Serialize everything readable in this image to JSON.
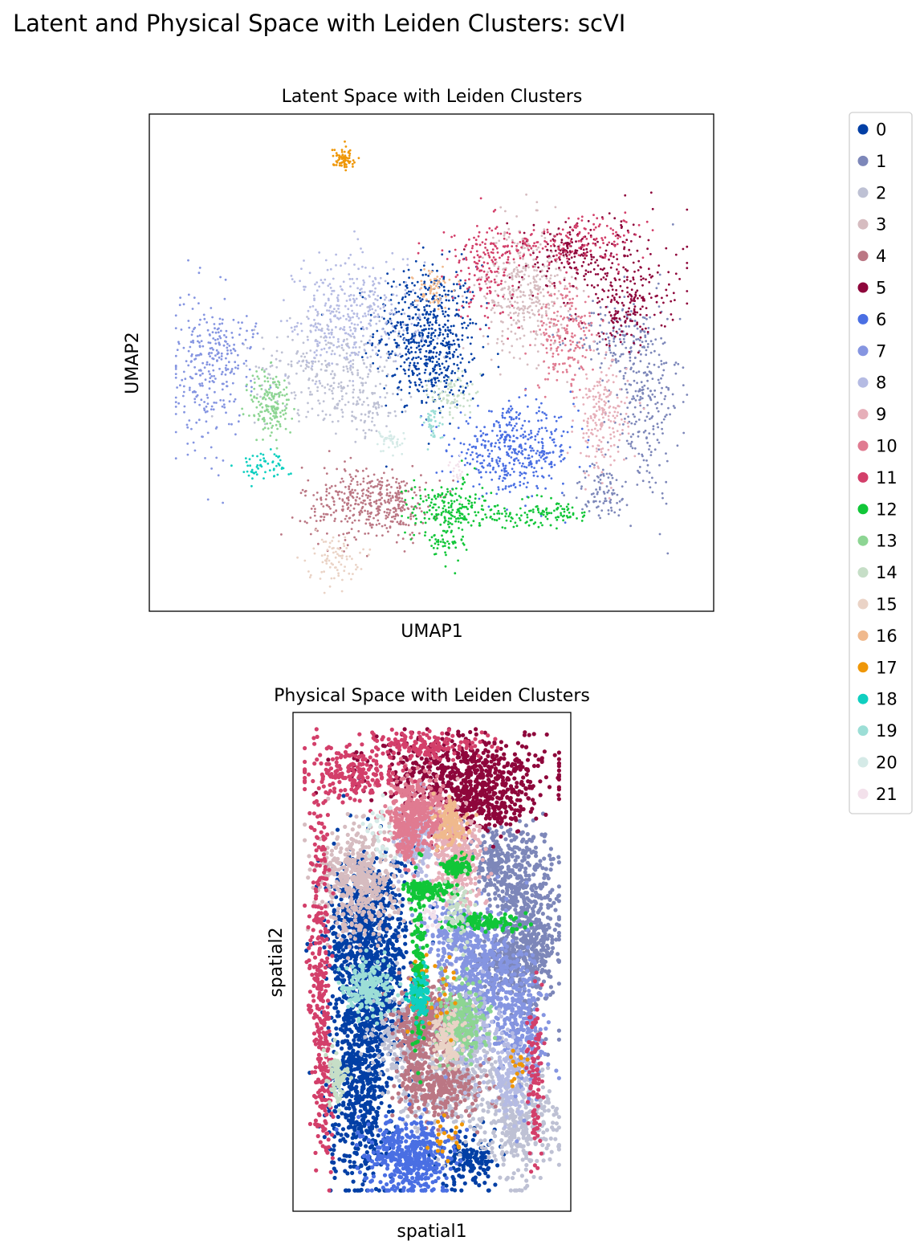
{
  "figure_title": "Latent and Physical Space with Leiden Clusters: scVI",
  "chart_data": [
    {
      "type": "scatter",
      "title": "Latent Space with Leiden Clusters",
      "xlabel": "UMAP1",
      "ylabel": "UMAP2",
      "grid": false,
      "ticks": false,
      "xlim": [
        0,
        100
      ],
      "ylim": [
        0,
        100
      ],
      "clusters": [
        {
          "id": "0",
          "blobs": [
            [
              49,
              57,
              5,
              7,
              520
            ],
            [
              51,
              48,
              3,
              4,
              120
            ]
          ]
        },
        {
          "id": "1",
          "blobs": [
            [
              91,
              42,
              3.5,
              11,
              260
            ],
            [
              86,
              55,
              4,
              4,
              120
            ],
            [
              83,
              22,
              3,
              3,
              80
            ]
          ]
        },
        {
          "id": "2",
          "blobs": [
            [
              30,
              49,
              7,
              5,
              260
            ],
            [
              37,
              40,
              4,
              3,
              90
            ]
          ]
        },
        {
          "id": "3",
          "blobs": [
            [
              68,
              66,
              4,
              7,
              380
            ]
          ]
        },
        {
          "id": "4",
          "blobs": [
            [
              37,
              20,
              6,
              4,
              340
            ],
            [
              43,
              19,
              3,
              3,
              90
            ]
          ]
        },
        {
          "id": "5",
          "blobs": [
            [
              82,
              72,
              8,
              5,
              200
            ],
            [
              88,
              62,
              4,
              4,
              160
            ],
            [
              76,
              74,
              3,
              2,
              60
            ]
          ]
        },
        {
          "id": "6",
          "blobs": [
            [
              66,
              31,
              6,
              4.5,
              430
            ]
          ]
        },
        {
          "id": "7",
          "blobs": [
            [
              6,
              48,
              3.5,
              8,
              230
            ],
            [
              11,
              53,
              3,
              4,
              70
            ]
          ]
        },
        {
          "id": "8",
          "blobs": [
            [
              36,
              62,
              6,
              6,
              300
            ],
            [
              31,
              55,
              4,
              3,
              80
            ]
          ]
        },
        {
          "id": "9",
          "blobs": [
            [
              83,
              38,
              2.5,
              6,
              200
            ]
          ]
        },
        {
          "id": "10",
          "blobs": [
            [
              76,
              56,
              3,
              6,
              200
            ]
          ]
        },
        {
          "id": "11",
          "blobs": [
            [
              60,
              70,
              3,
              5,
              140
            ],
            [
              71,
              75,
              8,
              2,
              140
            ],
            [
              83,
              78,
              4,
              2,
              60
            ]
          ]
        },
        {
          "id": "12",
          "blobs": [
            [
              53,
              19,
              4,
              3,
              170
            ],
            [
              63,
              17,
              6,
              1.5,
              80
            ],
            [
              75,
              18,
              2.5,
              1.5,
              60
            ],
            [
              53,
              12,
              2,
              3,
              60
            ]
          ]
        },
        {
          "id": "13",
          "blobs": [
            [
              19,
              41,
              2,
              4,
              170
            ]
          ]
        },
        {
          "id": "14",
          "blobs": [
            [
              54,
              43,
              2,
              2.5,
              80
            ]
          ]
        },
        {
          "id": "15",
          "blobs": [
            [
              31,
              8,
              2.5,
              2.5,
              80
            ]
          ]
        },
        {
          "id": "16",
          "blobs": [
            [
              50,
              66,
              1.8,
              2,
              60
            ]
          ]
        },
        {
          "id": "17",
          "blobs": [
            [
              33,
              94,
              1.1,
              1.2,
              70
            ]
          ]
        },
        {
          "id": "18",
          "blobs": [
            [
              17,
              28,
              2.5,
              1.5,
              60
            ]
          ]
        },
        {
          "id": "19",
          "blobs": [
            [
              50,
              37,
              1,
              1.8,
              40
            ]
          ]
        },
        {
          "id": "20",
          "blobs": [
            [
              42,
              33,
              1.5,
              1.5,
              40
            ]
          ]
        },
        {
          "id": "21",
          "blobs": [
            [
              55,
              27,
              0.6,
              2,
              20
            ]
          ]
        }
      ]
    },
    {
      "type": "scatter",
      "title": "Physical Space with Leiden Clusters",
      "xlabel": "spatial1",
      "ylabel": "spatial2",
      "grid": false,
      "ticks": false,
      "xlim": [
        0,
        100
      ],
      "ylim": [
        0,
        100
      ],
      "clusters": [
        {
          "id": "0",
          "blobs": [
            [
              25,
              55,
              8,
              9,
              800
            ],
            [
              22,
              25,
              6,
              12,
              700
            ],
            [
              30,
              40,
              5,
              6,
              200
            ],
            [
              65,
              7,
              6,
              3,
              150
            ]
          ]
        },
        {
          "id": "1",
          "blobs": [
            [
              88,
              58,
              6,
              10,
              500
            ],
            [
              80,
              50,
              8,
              3,
              250
            ],
            [
              75,
              70,
              5,
              4,
              200
            ]
          ]
        },
        {
          "id": "2",
          "blobs": [
            [
              58,
              27,
              10,
              7,
              500
            ],
            [
              85,
              15,
              7,
              6,
              350
            ],
            [
              38,
              33,
              5,
              5,
              150
            ]
          ]
        },
        {
          "id": "3",
          "blobs": [
            [
              22,
              67,
              8,
              6,
              500
            ]
          ]
        },
        {
          "id": "4",
          "blobs": [
            [
              50,
              37,
              6,
              4,
              300
            ],
            [
              55,
              22,
              8,
              3,
              250
            ],
            [
              43,
              30,
              3,
              6,
              150
            ]
          ]
        },
        {
          "id": "5",
          "blobs": [
            [
              62,
              90,
              18,
              4,
              600
            ],
            [
              70,
              83,
              8,
              3,
              200
            ]
          ]
        },
        {
          "id": "6",
          "blobs": [
            [
              42,
              8,
              8,
              4,
              450
            ]
          ]
        },
        {
          "id": "7",
          "blobs": [
            [
              70,
              45,
              8,
              7,
              450
            ],
            [
              85,
              35,
              5,
              7,
              250
            ],
            [
              60,
              55,
              6,
              4,
              200
            ]
          ]
        },
        {
          "id": "8",
          "blobs": [
            [
              45,
              76,
              4,
              4,
              180
            ],
            [
              65,
              35,
              5,
              5,
              150
            ],
            [
              80,
              25,
              4,
              5,
              150
            ]
          ]
        },
        {
          "id": "9",
          "blobs": [
            [
              60,
              72,
              5,
              5,
              300
            ]
          ]
        },
        {
          "id": "10",
          "blobs": [
            [
              45,
              82,
              6,
              4,
              350
            ],
            [
              40,
              76,
              3,
              3,
              100
            ]
          ]
        },
        {
          "id": "11",
          "blobs": [
            [
              6,
              55,
              2,
              14,
              200
            ],
            [
              18,
              90,
              10,
              3,
              200
            ],
            [
              47,
              96,
              10,
              1.5,
              150
            ],
            [
              8,
              25,
              2,
              10,
              150
            ],
            [
              90,
              25,
              1.5,
              8,
              100
            ]
          ]
        },
        {
          "id": "12",
          "blobs": [
            [
              45,
              50,
              1.2,
              10,
              150
            ],
            [
              48,
              65,
              5,
              1,
              120
            ],
            [
              70,
              58,
              8,
              1,
              120
            ],
            [
              60,
              70,
              3,
              1,
              80
            ]
          ]
        },
        {
          "id": "13",
          "blobs": [
            [
              62,
              37,
              5,
              4,
              250
            ]
          ]
        },
        {
          "id": "14",
          "blobs": [
            [
              13,
              25,
              2,
              3,
              80
            ],
            [
              60,
              60,
              3,
              3,
              60
            ]
          ]
        },
        {
          "id": "15",
          "blobs": [
            [
              56,
              33,
              3,
              3,
              120
            ]
          ]
        },
        {
          "id": "16",
          "blobs": [
            [
              57,
              79,
              3,
              2.5,
              120
            ]
          ]
        },
        {
          "id": "17",
          "blobs": [
            [
              50,
              43,
              6,
              5,
              25
            ],
            [
              83,
              27,
              1.5,
              2,
              15
            ],
            [
              55,
              12,
              4,
              2,
              20
            ]
          ]
        },
        {
          "id": "18",
          "blobs": [
            [
              45,
              42,
              2,
              3,
              100
            ]
          ]
        },
        {
          "id": "19",
          "blobs": [
            [
              25,
              44,
              5,
              3,
              200
            ]
          ]
        },
        {
          "id": "20",
          "blobs": [
            [
              30,
              78,
              3,
              3,
              30
            ]
          ]
        },
        {
          "id": "21",
          "blobs": [
            [
              50,
              60,
              2,
              2,
              20
            ]
          ]
        }
      ]
    }
  ],
  "legend": {
    "placement": "right",
    "entries": [
      {
        "label": "0",
        "color": "#023fa5"
      },
      {
        "label": "1",
        "color": "#7d87b9"
      },
      {
        "label": "2",
        "color": "#bec1d4"
      },
      {
        "label": "3",
        "color": "#d6bcc0"
      },
      {
        "label": "4",
        "color": "#bb7784"
      },
      {
        "label": "5",
        "color": "#8e063b"
      },
      {
        "label": "6",
        "color": "#4a6fe3"
      },
      {
        "label": "7",
        "color": "#8595e1"
      },
      {
        "label": "8",
        "color": "#b5bbe3"
      },
      {
        "label": "9",
        "color": "#e6afb9"
      },
      {
        "label": "10",
        "color": "#e07b91"
      },
      {
        "label": "11",
        "color": "#d33f6a"
      },
      {
        "label": "12",
        "color": "#11c638"
      },
      {
        "label": "13",
        "color": "#8dd593"
      },
      {
        "label": "14",
        "color": "#c6dec7"
      },
      {
        "label": "15",
        "color": "#ead3c6"
      },
      {
        "label": "16",
        "color": "#f0b98d"
      },
      {
        "label": "17",
        "color": "#ef9708"
      },
      {
        "label": "18",
        "color": "#0fcfc0"
      },
      {
        "label": "19",
        "color": "#9cded6"
      },
      {
        "label": "20",
        "color": "#d5eae7"
      },
      {
        "label": "21",
        "color": "#f3e1eb"
      }
    ]
  }
}
